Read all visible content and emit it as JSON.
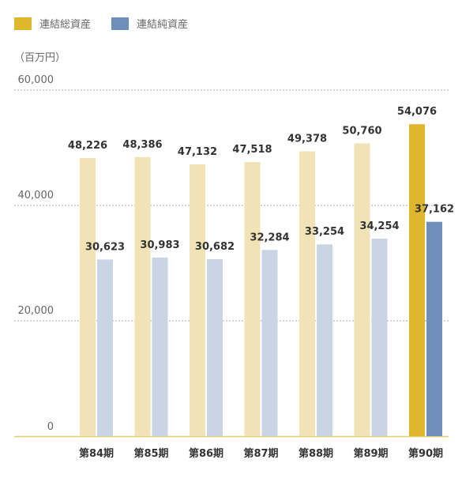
{
  "chart_data": {
    "type": "bar",
    "unit_label": "（百万円）",
    "categories": [
      "第84期",
      "第85期",
      "第86期",
      "第87期",
      "第88期",
      "第89期",
      "第90期"
    ],
    "series": [
      {
        "name": "連結総資産",
        "values": [
          48226,
          48386,
          47132,
          47518,
          49378,
          50760,
          54076
        ],
        "labels": [
          "48,226",
          "48,386",
          "47,132",
          "47,518",
          "49,378",
          "50,760",
          "54,076"
        ],
        "color": "#f1e3b6",
        "highlight_color": "#dfb72e"
      },
      {
        "name": "連結純資産",
        "values": [
          30623,
          30983,
          30682,
          32284,
          33254,
          34254,
          37162
        ],
        "labels": [
          "30,623",
          "30,983",
          "30,682",
          "32,284",
          "33,254",
          "34,254",
          "37,162"
        ],
        "color": "#c9d5e4",
        "highlight_color": "#6e8fba"
      }
    ],
    "highlight_category": "第90期",
    "yticks": [
      {
        "value": 0,
        "label": "0"
      },
      {
        "value": 20000,
        "label": "20,000"
      },
      {
        "value": 40000,
        "label": "40,000"
      },
      {
        "value": 60000,
        "label": "60,000"
      }
    ],
    "ylim": [
      0,
      60000
    ],
    "grid": true,
    "legend_position": "top-left"
  }
}
